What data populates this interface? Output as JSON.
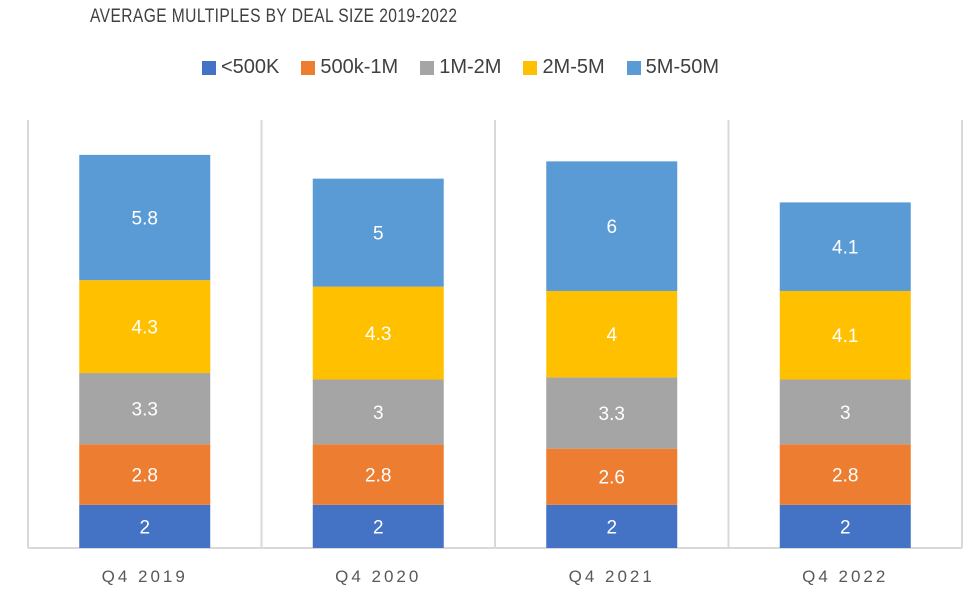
{
  "chart_data": {
    "type": "bar",
    "stacked": true,
    "title": "AVERAGE MULTIPLES BY DEAL SIZE 2019-2022",
    "categories": [
      "Q4 2019",
      "Q4 2020",
      "Q4 2021",
      "Q4 2022"
    ],
    "series": [
      {
        "name": "<500K",
        "color": "#4472c4",
        "values": [
          2,
          2,
          2,
          2
        ]
      },
      {
        "name": "500k-1M",
        "color": "#ed7d31",
        "values": [
          2.8,
          2.8,
          2.6,
          2.8
        ]
      },
      {
        "name": "1M-2M",
        "color": "#a5a5a5",
        "values": [
          3.3,
          3,
          3.3,
          3
        ]
      },
      {
        "name": "2M-5M",
        "color": "#ffc000",
        "values": [
          4.3,
          4.3,
          4,
          4.1
        ]
      },
      {
        "name": "5M-50M",
        "color": "#5b9bd5",
        "values": [
          5.8,
          5,
          6,
          4.1
        ]
      }
    ],
    "ylim": [
      0,
      20
    ],
    "legend_position": "top",
    "grid": false
  }
}
